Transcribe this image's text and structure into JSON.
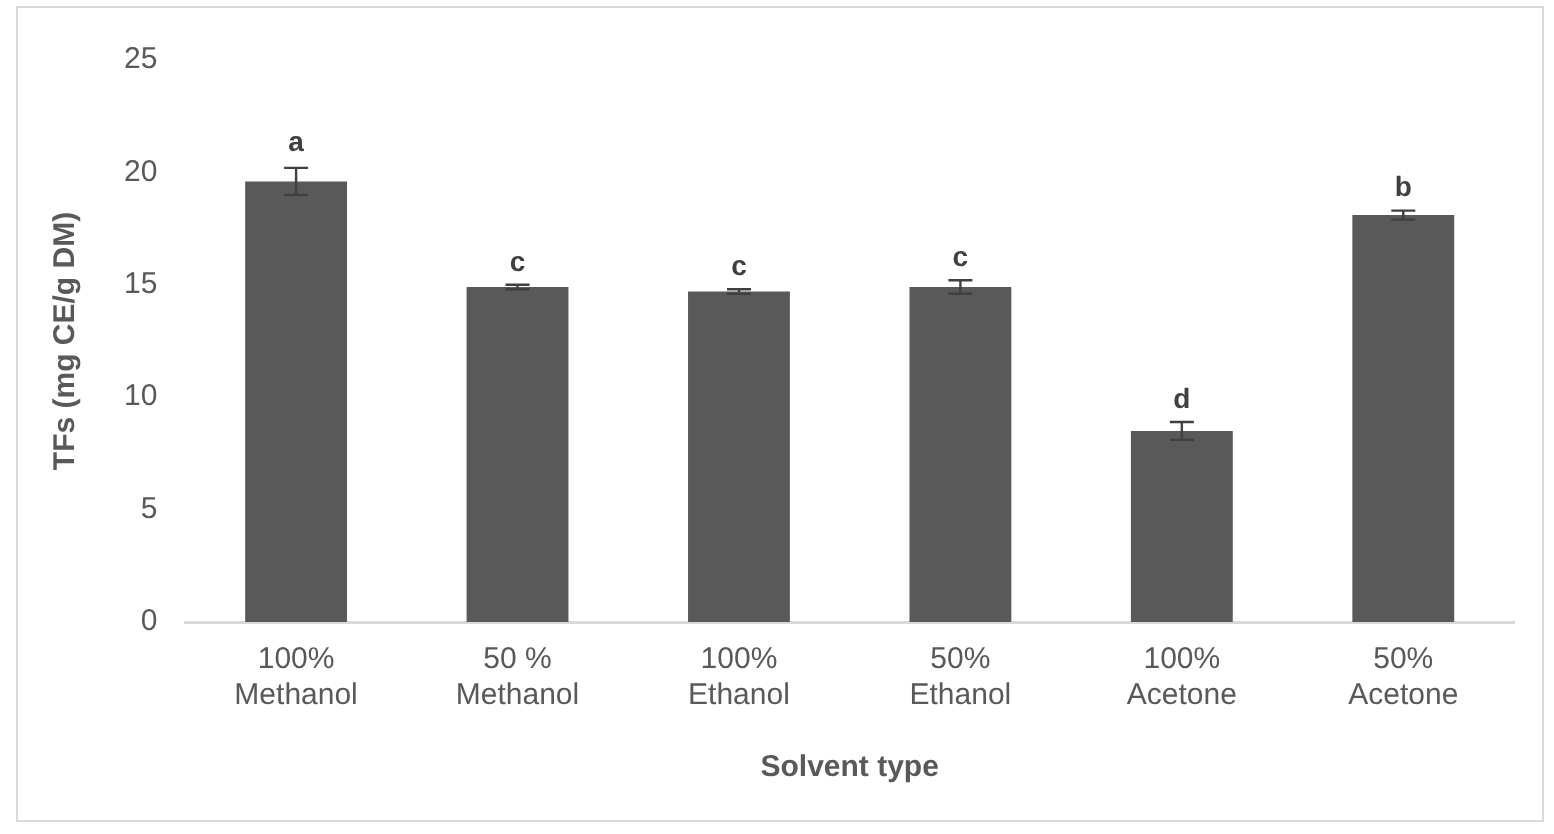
{
  "chart_data": {
    "type": "bar",
    "xlabel": "Solvent type",
    "ylabel": "TFs (mg CE/g DM)",
    "categories": [
      "100% Methanol",
      "50 % Methanol",
      "100% Ethanol",
      "50% Ethanol",
      "100% Acetone",
      "50% Acetone"
    ],
    "values": [
      19.6,
      14.9,
      14.7,
      14.9,
      8.5,
      18.1
    ],
    "errors": [
      0.6,
      0.1,
      0.1,
      0.3,
      0.4,
      0.2
    ],
    "color": "#595959",
    "ylim": [
      0,
      25
    ],
    "yticks": [
      0,
      5,
      10,
      15,
      20,
      25
    ],
    "grid": false,
    "legend": false,
    "annotations": [
      {
        "text": "a",
        "x": "100% Methanol",
        "y": 20.3
      },
      {
        "text": "c",
        "x": "50 % Methanol",
        "y": 15.0
      },
      {
        "text": "c",
        "x": "100% Ethanol",
        "y": 14.8
      },
      {
        "text": "c",
        "x": "50% Ethanol",
        "y": 15.2
      },
      {
        "text": "d",
        "x": "100% Acetone",
        "y": 8.9
      },
      {
        "text": "b",
        "x": "50% Acetone",
        "y": 18.3
      }
    ]
  }
}
